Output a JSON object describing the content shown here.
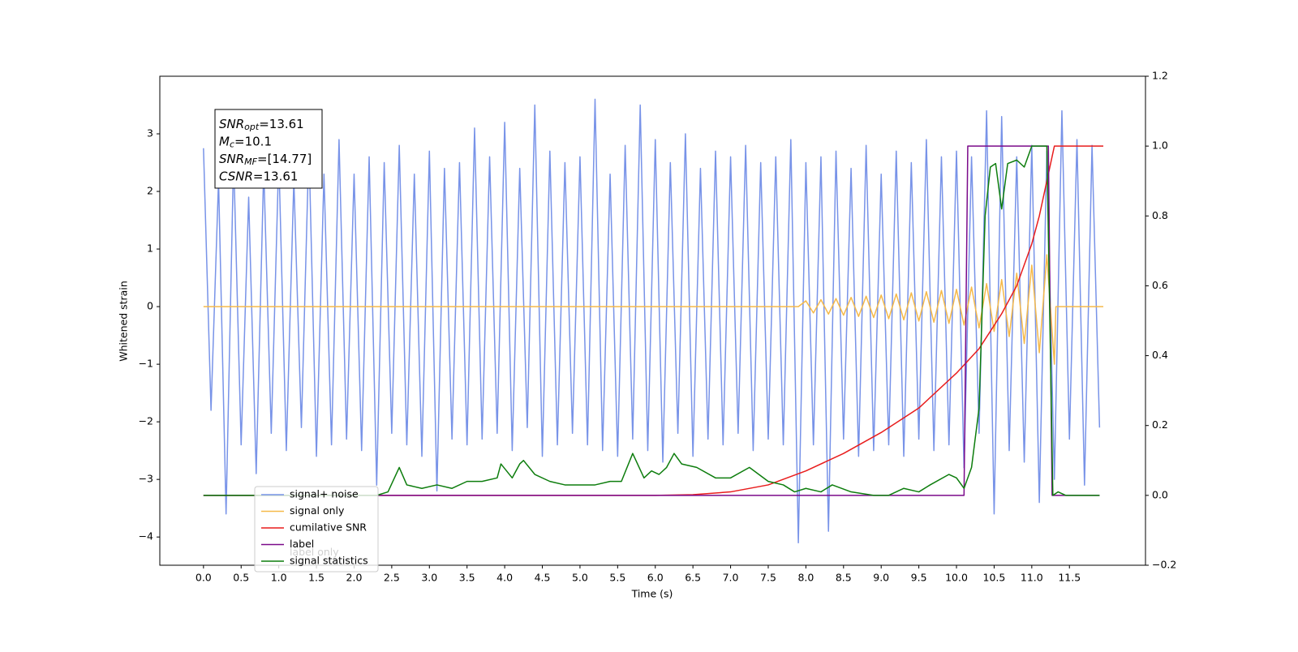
{
  "chart_data": {
    "type": "line",
    "xlabel": "Time (s)",
    "ylabel": "Whitened strain",
    "xlim": [
      -0.58,
      12.51
    ],
    "ylim": [
      -4.49,
      4.0
    ],
    "y2lim": [
      -0.2,
      1.2
    ],
    "xticks": [
      {
        "value": 0,
        "label": "0.0"
      },
      0.5,
      {
        "value": 1,
        "label": "1.0"
      },
      1.5,
      {
        "value": 2,
        "label": "2.0"
      },
      2.5,
      {
        "value": 3,
        "label": "3.0"
      },
      3.5,
      {
        "value": 4,
        "label": "4.0"
      },
      4.5,
      {
        "value": 5,
        "label": "5.0"
      },
      5.5,
      {
        "value": 6,
        "label": "6.0"
      },
      6.5,
      {
        "value": 7,
        "label": "7.0"
      },
      7.5,
      {
        "value": 8,
        "label": "8.0"
      },
      8.5,
      {
        "value": 9,
        "label": "9.0"
      },
      9.5,
      {
        "value": 10,
        "label": "10.0"
      },
      10.5,
      {
        "value": 11,
        "label": "11.0"
      },
      11.5
    ],
    "yticks": [
      {
        "value": -4,
        "label": "−4"
      },
      {
        "value": -3,
        "label": "−3"
      },
      {
        "value": -2,
        "label": "−2"
      },
      {
        "value": -1,
        "label": "−1"
      },
      0,
      1,
      2,
      3
    ],
    "y2ticks": [
      {
        "value": -0.2,
        "label": "−0.2"
      },
      {
        "value": 0,
        "label": "0.0"
      },
      0.2,
      0.4,
      0.6,
      0.8,
      {
        "value": 1,
        "label": "1.0"
      },
      1.2
    ],
    "legend": "lower left",
    "background_legend": [
      "label only"
    ],
    "annotations": [
      {
        "base": "SNR",
        "sub": "opt",
        "text": "=13.61"
      },
      {
        "base": "M",
        "sub": "c",
        "text": "=10.1"
      },
      {
        "base": "SNR",
        "sub": "MF",
        "text": "=[14.77]"
      },
      {
        "base": "CSNR",
        "text": "=13.61"
      }
    ],
    "series": [
      {
        "name": "signal+ noise",
        "color": "#7893e8",
        "x": [
          0,
          0.1,
          0.2,
          0.3,
          0.4,
          0.5,
          0.6,
          0.7,
          0.8,
          0.9,
          1,
          1.1,
          1.2,
          1.3,
          1.4,
          1.5,
          1.6,
          1.7,
          1.8,
          1.9,
          2,
          2.1,
          2.2,
          2.3,
          2.4,
          2.5,
          2.6,
          2.7,
          2.8,
          2.9,
          3,
          3.1,
          3.2,
          3.3,
          3.4,
          3.5,
          3.6,
          3.7,
          3.8,
          3.9,
          4,
          4.1,
          4.2,
          4.3,
          4.4,
          4.5,
          4.6,
          4.7,
          4.8,
          4.9,
          5,
          5.1,
          5.2,
          5.3,
          5.4,
          5.5,
          5.6,
          5.7,
          5.8,
          5.9,
          6,
          6.1,
          6.2,
          6.3,
          6.4,
          6.5,
          6.6,
          6.7,
          6.8,
          6.9,
          7,
          7.1,
          7.2,
          7.3,
          7.4,
          7.5,
          7.6,
          7.7,
          7.8,
          7.9,
          8,
          8.1,
          8.2,
          8.3,
          8.4,
          8.5,
          8.6,
          8.7,
          8.8,
          8.9,
          9,
          9.1,
          9.2,
          9.3,
          9.4,
          9.5,
          9.6,
          9.7,
          9.8,
          9.9,
          10,
          10.1,
          10.2,
          10.3,
          10.4,
          10.5,
          10.6,
          10.7,
          10.8,
          10.9,
          11,
          11.1,
          11.2,
          11.3,
          11.4,
          11.5,
          11.6,
          11.7,
          11.8,
          11.9
        ],
        "values": [
          2.75,
          -1.8,
          2.2,
          -3.6,
          2.6,
          -2.4,
          1.9,
          -2.9,
          2.4,
          -2.2,
          2.6,
          -2.5,
          2.2,
          -2.1,
          2.8,
          -2.6,
          2.3,
          -2.4,
          2.9,
          -2.3,
          2.3,
          -2.5,
          2.6,
          -3.1,
          2.5,
          -2.2,
          2.8,
          -2.4,
          2.3,
          -2.6,
          2.7,
          -3.2,
          2.4,
          -2.3,
          2.5,
          -2.4,
          3.1,
          -2.3,
          2.6,
          -2.2,
          3.2,
          -2.5,
          2.4,
          -2.1,
          3.5,
          -2.6,
          2.7,
          -2.4,
          2.5,
          -2.2,
          2.6,
          -2.4,
          3.6,
          -2.5,
          2.3,
          -2.6,
          2.8,
          -2.3,
          3.5,
          -2.5,
          2.9,
          -2.7,
          2.5,
          -2.2,
          3.0,
          -2.6,
          2.4,
          -2.3,
          2.7,
          -2.4,
          2.6,
          -2.2,
          2.8,
          -2.5,
          2.5,
          -2.3,
          2.6,
          -2.4,
          2.9,
          -4.1,
          2.5,
          -2.4,
          2.6,
          -3.9,
          2.7,
          -2.3,
          2.4,
          -2.6,
          2.8,
          -2.5,
          2.3,
          -2.4,
          2.7,
          -2.6,
          2.5,
          -2.3,
          2.9,
          -2.5,
          2.6,
          -2.4,
          2.7,
          -2.8,
          2.6,
          -2.2,
          3.4,
          -3.6,
          3.3,
          -2.5,
          2.6,
          -2.7,
          2.8,
          -3.4,
          2.7,
          -3.0,
          3.4,
          -2.3,
          2.9,
          -3.1,
          2.8,
          -2.1
        ]
      },
      {
        "name": "signal only",
        "color": "#f5b94a",
        "x": [
          0,
          7.9,
          8,
          8.1,
          8.2,
          8.3,
          8.4,
          8.5,
          8.6,
          8.7,
          8.8,
          8.9,
          9,
          9.1,
          9.2,
          9.3,
          9.4,
          9.5,
          9.6,
          9.7,
          9.8,
          9.9,
          10,
          10.1,
          10.2,
          10.3,
          10.4,
          10.5,
          10.6,
          10.7,
          10.8,
          10.9,
          11,
          11.1,
          11.2,
          11.3,
          11.32,
          11.95
        ],
        "values": [
          0,
          0,
          0.1,
          -0.11,
          0.12,
          -0.13,
          0.14,
          -0.15,
          0.16,
          -0.17,
          0.18,
          -0.19,
          0.2,
          -0.21,
          0.22,
          -0.23,
          0.24,
          -0.25,
          0.26,
          -0.27,
          0.28,
          -0.29,
          0.3,
          -0.32,
          0.34,
          -0.37,
          0.4,
          -0.43,
          0.47,
          -0.52,
          0.58,
          -0.64,
          0.72,
          -0.8,
          0.9,
          -1.0,
          0,
          0
        ]
      },
      {
        "name": "cumilative SNR",
        "color": "#e81c1c",
        "axis": "y2",
        "x": [
          0,
          6,
          6.5,
          7,
          7.5,
          8,
          8.5,
          9,
          9.5,
          10,
          10.3,
          10.6,
          10.8,
          11,
          11.1,
          11.2,
          11.3,
          11.45,
          11.95
        ],
        "values": [
          0,
          0,
          0.002,
          0.01,
          0.03,
          0.07,
          0.12,
          0.18,
          0.25,
          0.35,
          0.42,
          0.52,
          0.6,
          0.72,
          0.8,
          0.9,
          1.0,
          1.0,
          1.0
        ]
      },
      {
        "name": "label",
        "color": "#7b0a8a",
        "axis": "y2",
        "x": [
          0,
          10.1,
          10.15,
          11.22,
          11.27,
          11.9
        ],
        "values": [
          0,
          0,
          1,
          1,
          0,
          0
        ]
      },
      {
        "name": "signal statistics",
        "color": "#0d7d0d",
        "axis": "y2",
        "x": [
          0,
          2.3,
          2.45,
          2.6,
          2.7,
          2.9,
          3.1,
          3.3,
          3.5,
          3.7,
          3.9,
          3.95,
          4.1,
          4.2,
          4.25,
          4.4,
          4.6,
          4.8,
          5,
          5.2,
          5.4,
          5.55,
          5.7,
          5.85,
          5.95,
          6.05,
          6.15,
          6.25,
          6.35,
          6.55,
          6.8,
          7,
          7.25,
          7.5,
          7.7,
          7.85,
          8,
          8.2,
          8.35,
          8.6,
          8.9,
          9.1,
          9.3,
          9.5,
          9.65,
          9.9,
          10,
          10.1,
          10.2,
          10.3,
          10.38,
          10.45,
          10.52,
          10.6,
          10.68,
          10.8,
          10.9,
          11,
          11.2,
          11.28,
          11.35,
          11.45,
          11.9
        ],
        "values": [
          0,
          0,
          0.01,
          0.08,
          0.03,
          0.02,
          0.03,
          0.02,
          0.04,
          0.04,
          0.05,
          0.09,
          0.05,
          0.09,
          0.1,
          0.06,
          0.04,
          0.03,
          0.03,
          0.03,
          0.04,
          0.04,
          0.12,
          0.05,
          0.07,
          0.06,
          0.08,
          0.12,
          0.09,
          0.08,
          0.05,
          0.05,
          0.08,
          0.04,
          0.03,
          0.01,
          0.02,
          0.01,
          0.03,
          0.01,
          0,
          0,
          0.02,
          0.01,
          0.03,
          0.06,
          0.05,
          0.02,
          0.08,
          0.25,
          0.8,
          0.94,
          0.95,
          0.82,
          0.95,
          0.96,
          0.94,
          1.0,
          1.0,
          0,
          0.01,
          0,
          0
        ]
      }
    ]
  }
}
